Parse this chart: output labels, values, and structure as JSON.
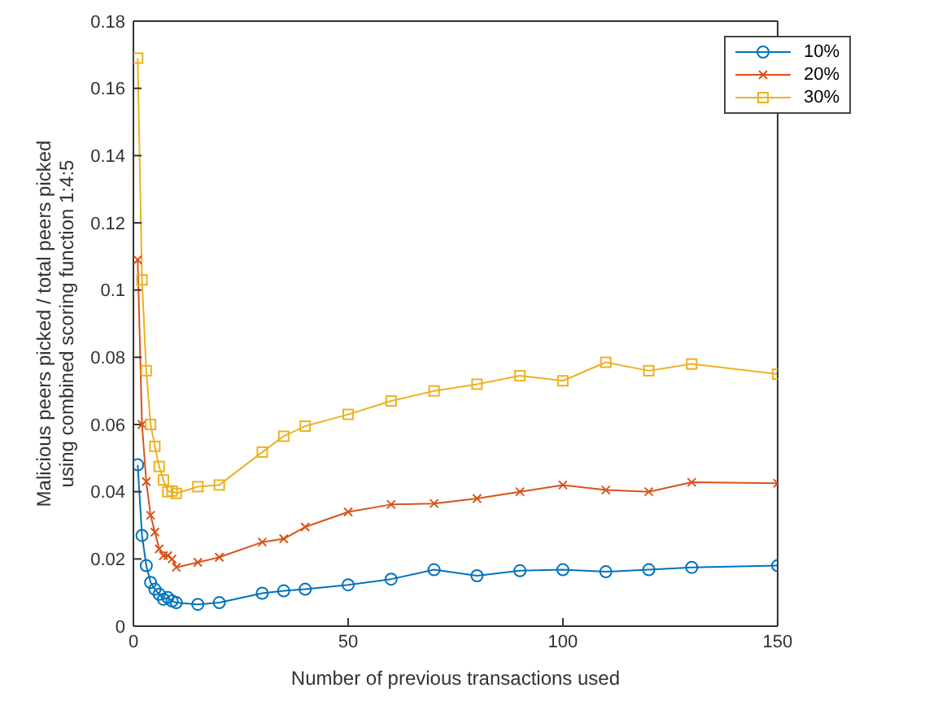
{
  "chart_data": {
    "type": "line",
    "xlabel": "Number of previous transactions used",
    "ylabel": "Malicious peers picked / total peers picked\nusing combined scoring function 1:4:5",
    "x": [
      1,
      2,
      3,
      4,
      5,
      6,
      7,
      8,
      9,
      10,
      15,
      20,
      30,
      35,
      40,
      50,
      60,
      70,
      80,
      90,
      100,
      110,
      120,
      130,
      150
    ],
    "series": [
      {
        "name": "10%",
        "color": "#0072bd",
        "marker": "circle",
        "values": [
          0.048,
          0.027,
          0.018,
          0.013,
          0.011,
          0.0095,
          0.008,
          0.0085,
          0.0075,
          0.007,
          0.0065,
          0.007,
          0.0098,
          0.0105,
          0.011,
          0.0123,
          0.014,
          0.0168,
          0.015,
          0.0165,
          0.0168,
          0.0162,
          0.0168,
          0.0175,
          0.018
        ]
      },
      {
        "name": "20%",
        "color": "#d95319",
        "marker": "cross",
        "values": [
          0.109,
          0.06,
          0.043,
          0.033,
          0.028,
          0.023,
          0.021,
          0.021,
          0.02,
          0.0175,
          0.019,
          0.0205,
          0.025,
          0.026,
          0.0295,
          0.034,
          0.0362,
          0.0365,
          0.038,
          0.04,
          0.042,
          0.0405,
          0.04,
          0.0428,
          0.0425
        ]
      },
      {
        "name": "30%",
        "color": "#edb120",
        "marker": "square",
        "values": [
          0.169,
          0.103,
          0.076,
          0.06,
          0.0535,
          0.0475,
          0.0435,
          0.04,
          0.0402,
          0.0395,
          0.0415,
          0.042,
          0.0518,
          0.0565,
          0.0595,
          0.063,
          0.067,
          0.07,
          0.072,
          0.0745,
          0.073,
          0.0785,
          0.076,
          0.078,
          0.075
        ]
      }
    ],
    "xlim": [
      0,
      150
    ],
    "xticks": [
      0,
      50,
      100,
      150
    ],
    "ylim": [
      0,
      0.18
    ],
    "yticks": [
      0,
      0.02,
      0.04,
      0.06,
      0.08,
      0.1,
      0.12,
      0.14,
      0.16,
      0.18
    ],
    "grid": false,
    "legend": "top right"
  }
}
